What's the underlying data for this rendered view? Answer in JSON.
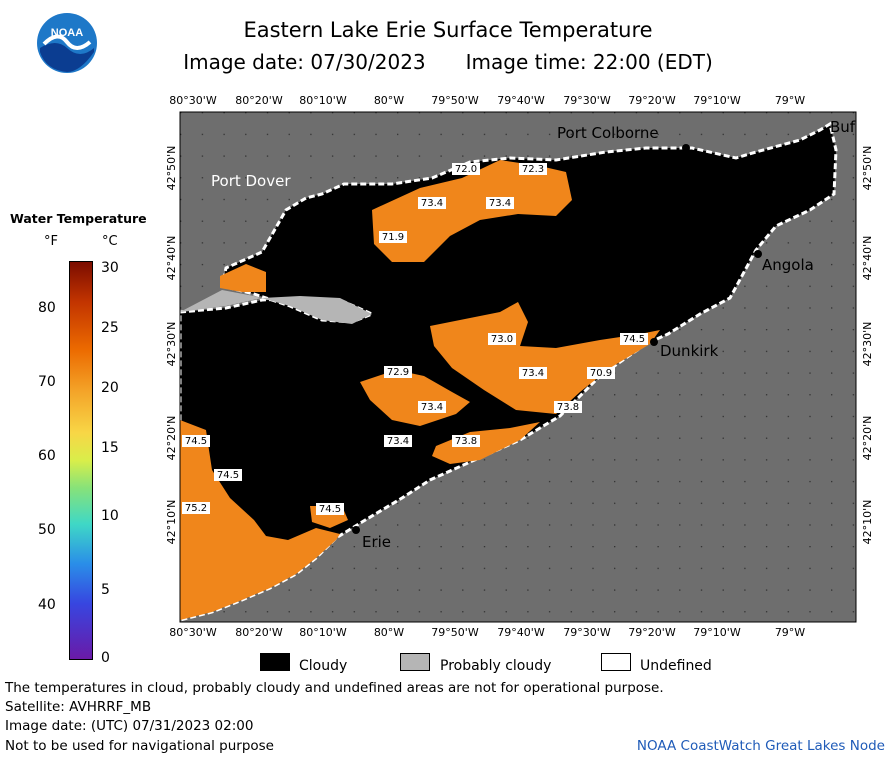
{
  "header": {
    "title": "Eastern Lake Erie Surface Temperature",
    "image_date": "Image date: 07/30/2023",
    "image_time": "Image time: 22:00 (EDT)"
  },
  "logo": {
    "text": "NOAA",
    "icon": "noaa-logo"
  },
  "axes": {
    "lon_labels": [
      "80°30'W",
      "80°20'W",
      "80°10'W",
      "80°W",
      "79°50'W",
      "79°40'W",
      "79°30'W",
      "79°20'W",
      "79°10'W",
      "79°W"
    ],
    "lat_labels": [
      "42°50'N",
      "42°40'N",
      "42°30'N",
      "42°20'N",
      "42°10'N"
    ]
  },
  "legend": {
    "title": "Water Temperature",
    "unit_f": "°F",
    "unit_c": "°C",
    "f_ticks": [
      "80",
      "70",
      "60",
      "50",
      "40"
    ],
    "c_ticks": [
      "30",
      "25",
      "20",
      "15",
      "10",
      "5",
      "0"
    ],
    "colors": {
      "cold": "#6a1aa8",
      "mid": "#d9ee4a",
      "warm": "#ec6a00",
      "hot": "#7b0c00"
    }
  },
  "places": [
    {
      "name": "Port Colborne"
    },
    {
      "name": "Port Dover"
    },
    {
      "name": "Angola"
    },
    {
      "name": "Dunkirk"
    },
    {
      "name": "Erie"
    },
    {
      "name": "Buf"
    }
  ],
  "temperature_labels": [
    "72.0",
    "72.3",
    "73.4",
    "73.4",
    "71.9",
    "73.0",
    "74.5",
    "72.9",
    "73.4",
    "70.9",
    "73.4",
    "73.8",
    "73.4",
    "73.8",
    "74.5",
    "74.5",
    "75.2",
    "74.5"
  ],
  "map_colors": {
    "land": "#6e6e6e",
    "cloud": "#000000",
    "water": "#f0861b",
    "probably_cloudy": "#b5b5b5",
    "undefined": "#ffffff"
  },
  "key": {
    "cloudy": "Cloudy",
    "probably_cloudy": "Probably cloudy",
    "undefined": "Undefined"
  },
  "footer": {
    "note": "The temperatures in cloud, probably cloudy and undefined areas are not for operational purpose.",
    "satellite": "Satellite: AVHRRF_MB",
    "utc_date": "Image date: (UTC) 07/31/2023  02:00",
    "nav_warning": "Not to be used for navigational purpose",
    "credit": "NOAA CoastWatch Great Lakes Node"
  }
}
